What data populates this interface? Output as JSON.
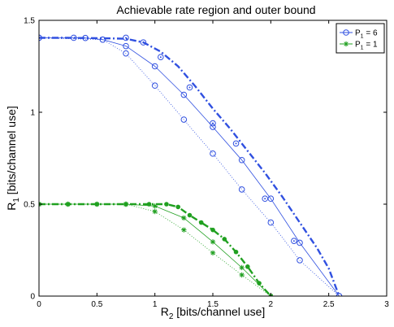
{
  "chart_data": {
    "type": "line",
    "title": "Achievable rate region and outer bound",
    "xlabel": {
      "main": "R",
      "sub": "2",
      "rest": " [bits/channel use]"
    },
    "ylabel": {
      "main": "R",
      "sub": "1",
      "rest": " [bits/channel use]"
    },
    "xlim": [
      0,
      3
    ],
    "ylim": [
      0,
      1.5
    ],
    "xticks": [
      0,
      0.5,
      1,
      1.5,
      2,
      2.5,
      3
    ],
    "xtick_labels": [
      "0",
      "0.5",
      "1",
      "1.5",
      "2",
      "2.5",
      "3"
    ],
    "yticks": [
      0,
      0.5,
      1,
      1.5
    ],
    "ytick_labels": [
      "0",
      "0.5",
      "1",
      "1.5"
    ],
    "grid": false,
    "legend": {
      "position": "top-right",
      "entries": [
        {
          "main": "P",
          "sub": "1",
          "rest": " = 6",
          "color": "#3050e0",
          "marker": "circle"
        },
        {
          "main": "P",
          "sub": "1",
          "rest": " = 1",
          "color": "#20a020",
          "marker": "star"
        }
      ]
    },
    "colors": {
      "blue": "#3050e0",
      "green": "#20a020"
    },
    "series": [
      {
        "group": "P1=6",
        "color": "#3050e0",
        "style": "dashdot",
        "width": 2.4,
        "marker": "none",
        "points": [
          [
            0,
            1.405
          ],
          [
            0.25,
            1.405
          ],
          [
            0.5,
            1.403
          ],
          [
            0.75,
            1.4
          ],
          [
            0.9,
            1.38
          ],
          [
            1.05,
            1.33
          ],
          [
            1.2,
            1.25
          ],
          [
            1.35,
            1.14
          ],
          [
            1.5,
            1.02
          ],
          [
            1.65,
            0.91
          ],
          [
            1.8,
            0.79
          ],
          [
            1.95,
            0.67
          ],
          [
            2.1,
            0.54
          ],
          [
            2.25,
            0.4
          ],
          [
            2.4,
            0.26
          ],
          [
            2.5,
            0.15
          ],
          [
            2.59,
            0.0
          ]
        ]
      },
      {
        "group": "P1=6",
        "color": "#3050e0",
        "style": "solid",
        "width": 0.8,
        "marker": "circle",
        "points": [
          [
            0,
            1.405
          ],
          [
            0.3,
            1.405
          ],
          [
            0.4,
            1.404
          ],
          [
            0.55,
            1.395
          ],
          [
            0.75,
            1.36
          ],
          [
            1.0,
            1.25
          ],
          [
            1.25,
            1.095
          ],
          [
            1.5,
            0.92
          ],
          [
            1.75,
            0.74
          ],
          [
            2.0,
            0.53
          ],
          [
            2.25,
            0.29
          ],
          [
            2.59,
            0.0
          ]
        ]
      },
      {
        "group": "P1=6",
        "color": "#3050e0",
        "style": "dotted",
        "width": 0.8,
        "marker": "circle",
        "points": [
          [
            0,
            1.405
          ],
          [
            0.55,
            1.395
          ],
          [
            0.75,
            1.32
          ],
          [
            1.0,
            1.145
          ],
          [
            1.25,
            0.96
          ],
          [
            1.5,
            0.775
          ],
          [
            1.75,
            0.58
          ],
          [
            2.0,
            0.4
          ],
          [
            2.25,
            0.195
          ],
          [
            2.59,
            0.0
          ]
        ]
      },
      {
        "group": "P1=6",
        "color": "#3050e0",
        "style": "none",
        "width": 0.8,
        "marker": "dotcircle",
        "points": [
          [
            0.75,
            1.405
          ],
          [
            0.9,
            1.38
          ],
          [
            1.05,
            1.3
          ],
          [
            1.3,
            1.135
          ],
          [
            1.5,
            0.94
          ],
          [
            1.7,
            0.83
          ],
          [
            1.95,
            0.53
          ],
          [
            2.2,
            0.3
          ]
        ]
      },
      {
        "group": "P1=1",
        "color": "#20a020",
        "style": "dashdot",
        "width": 2.4,
        "marker": "dot",
        "points": [
          [
            0,
            0.5
          ],
          [
            0.25,
            0.5
          ],
          [
            0.5,
            0.5
          ],
          [
            0.75,
            0.5
          ],
          [
            0.95,
            0.5
          ],
          [
            1.1,
            0.5
          ],
          [
            1.2,
            0.485
          ],
          [
            1.3,
            0.44
          ],
          [
            1.4,
            0.4
          ],
          [
            1.5,
            0.36
          ],
          [
            1.6,
            0.31
          ],
          [
            1.7,
            0.24
          ],
          [
            1.8,
            0.16
          ],
          [
            1.9,
            0.07
          ],
          [
            2.0,
            0.0
          ]
        ]
      },
      {
        "group": "P1=1",
        "color": "#20a020",
        "style": "solid",
        "width": 0.8,
        "marker": "star",
        "points": [
          [
            0,
            0.5
          ],
          [
            0.25,
            0.5
          ],
          [
            0.5,
            0.5
          ],
          [
            0.75,
            0.5
          ],
          [
            1.0,
            0.49
          ],
          [
            1.25,
            0.425
          ],
          [
            1.5,
            0.295
          ],
          [
            1.75,
            0.155
          ],
          [
            2.0,
            0.0
          ]
        ]
      },
      {
        "group": "P1=1",
        "color": "#20a020",
        "style": "dotted",
        "width": 0.8,
        "marker": "star",
        "points": [
          [
            0,
            0.5
          ],
          [
            0.75,
            0.5
          ],
          [
            1.0,
            0.46
          ],
          [
            1.25,
            0.36
          ],
          [
            1.5,
            0.235
          ],
          [
            1.75,
            0.115
          ],
          [
            2.0,
            0.0
          ]
        ]
      }
    ]
  }
}
